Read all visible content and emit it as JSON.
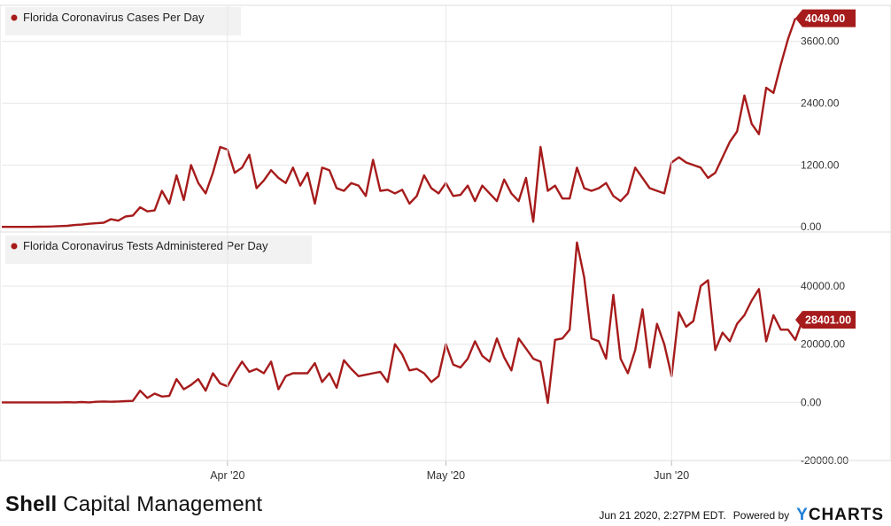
{
  "colors": {
    "series": "#a61b1b",
    "grid": "#e6e6e6",
    "axis_text": "#333333",
    "label_bg": "#f2f2f2"
  },
  "chart_data": [
    {
      "type": "line",
      "title": "Florida Coronavirus Cases Per Day",
      "ylim": [
        -100,
        4300
      ],
      "yticks": [
        0,
        1200,
        2400,
        3600
      ],
      "ytick_labels": [
        "0.00",
        "1200.00",
        "2400.00",
        "3600.00"
      ],
      "last_value_label": "4049.00",
      "x_start": "2020-03-01",
      "x_step_days": 1,
      "values": [
        0,
        0,
        0,
        0,
        0,
        3,
        5,
        8,
        15,
        20,
        35,
        45,
        60,
        70,
        80,
        150,
        120,
        200,
        220,
        380,
        300,
        320,
        700,
        450,
        1000,
        520,
        1200,
        850,
        650,
        1050,
        1550,
        1500,
        1050,
        1150,
        1400,
        750,
        900,
        1100,
        950,
        850,
        1150,
        800,
        1050,
        450,
        1150,
        1100,
        750,
        700,
        850,
        800,
        600,
        1300,
        700,
        720,
        650,
        720,
        450,
        600,
        1000,
        750,
        650,
        850,
        600,
        620,
        800,
        500,
        800,
        650,
        500,
        920,
        650,
        500,
        950,
        100,
        1550,
        700,
        800,
        550,
        550,
        1150,
        750,
        700,
        750,
        850,
        600,
        500,
        650,
        1150,
        950,
        750,
        700,
        650,
        1250,
        1350,
        1250,
        1200,
        1150,
        950,
        1050,
        1350,
        1650,
        1850,
        2550,
        2000,
        1800,
        2700,
        2600,
        3150,
        3650,
        4049
      ],
      "xticks": [
        {
          "date": "2020-04-01",
          "label": "Apr '20"
        },
        {
          "date": "2020-05-01",
          "label": "May '20"
        },
        {
          "date": "2020-06-01",
          "label": "Jun '20"
        }
      ]
    },
    {
      "type": "line",
      "title": "Florida Coronavirus Tests Administered Per Day",
      "ylim": [
        -20000,
        58000
      ],
      "yticks": [
        -20000,
        0,
        20000,
        40000
      ],
      "ytick_labels": [
        "-20000.00",
        "0.00",
        "20000.00",
        "40000.00"
      ],
      "last_value_label": "28401.00",
      "x_start": "2020-03-01",
      "x_step_days": 1,
      "values": [
        0,
        0,
        0,
        0,
        0,
        0,
        0,
        0,
        0,
        50,
        0,
        100,
        0,
        200,
        300,
        200,
        300,
        400,
        500,
        4000,
        1500,
        3000,
        2000,
        2200,
        8000,
        4500,
        6000,
        8000,
        4000,
        10000,
        6500,
        5500,
        10000,
        14000,
        10500,
        11500,
        10000,
        14000,
        4500,
        9000,
        10000,
        10000,
        10000,
        13500,
        7000,
        10000,
        5000,
        14500,
        11500,
        9000,
        9500,
        10000,
        10500,
        7000,
        20000,
        16500,
        11000,
        11500,
        10000,
        7000,
        9000,
        20000,
        13000,
        12000,
        15000,
        21000,
        16000,
        14000,
        22000,
        15500,
        11000,
        22000,
        18500,
        15000,
        14000,
        -200,
        21500,
        22000,
        25000,
        55000,
        43000,
        22000,
        21000,
        15000,
        37000,
        15000,
        10000,
        18000,
        32000,
        12000,
        27000,
        20000,
        9000,
        31000,
        26000,
        28000,
        40000,
        42000,
        18000,
        24000,
        21000,
        27000,
        30000,
        35000,
        39000,
        21000,
        30000,
        25000,
        25000,
        21500,
        28401
      ],
      "xticks": []
    }
  ],
  "footer": {
    "brand_bold": "Shell",
    "brand_rest": "Capital Management",
    "timestamp": "Jun 21 2020, 2:27PM EDT.",
    "powered_by": "Powered by",
    "logo_y": "Y",
    "logo_rest": "CHARTS"
  }
}
